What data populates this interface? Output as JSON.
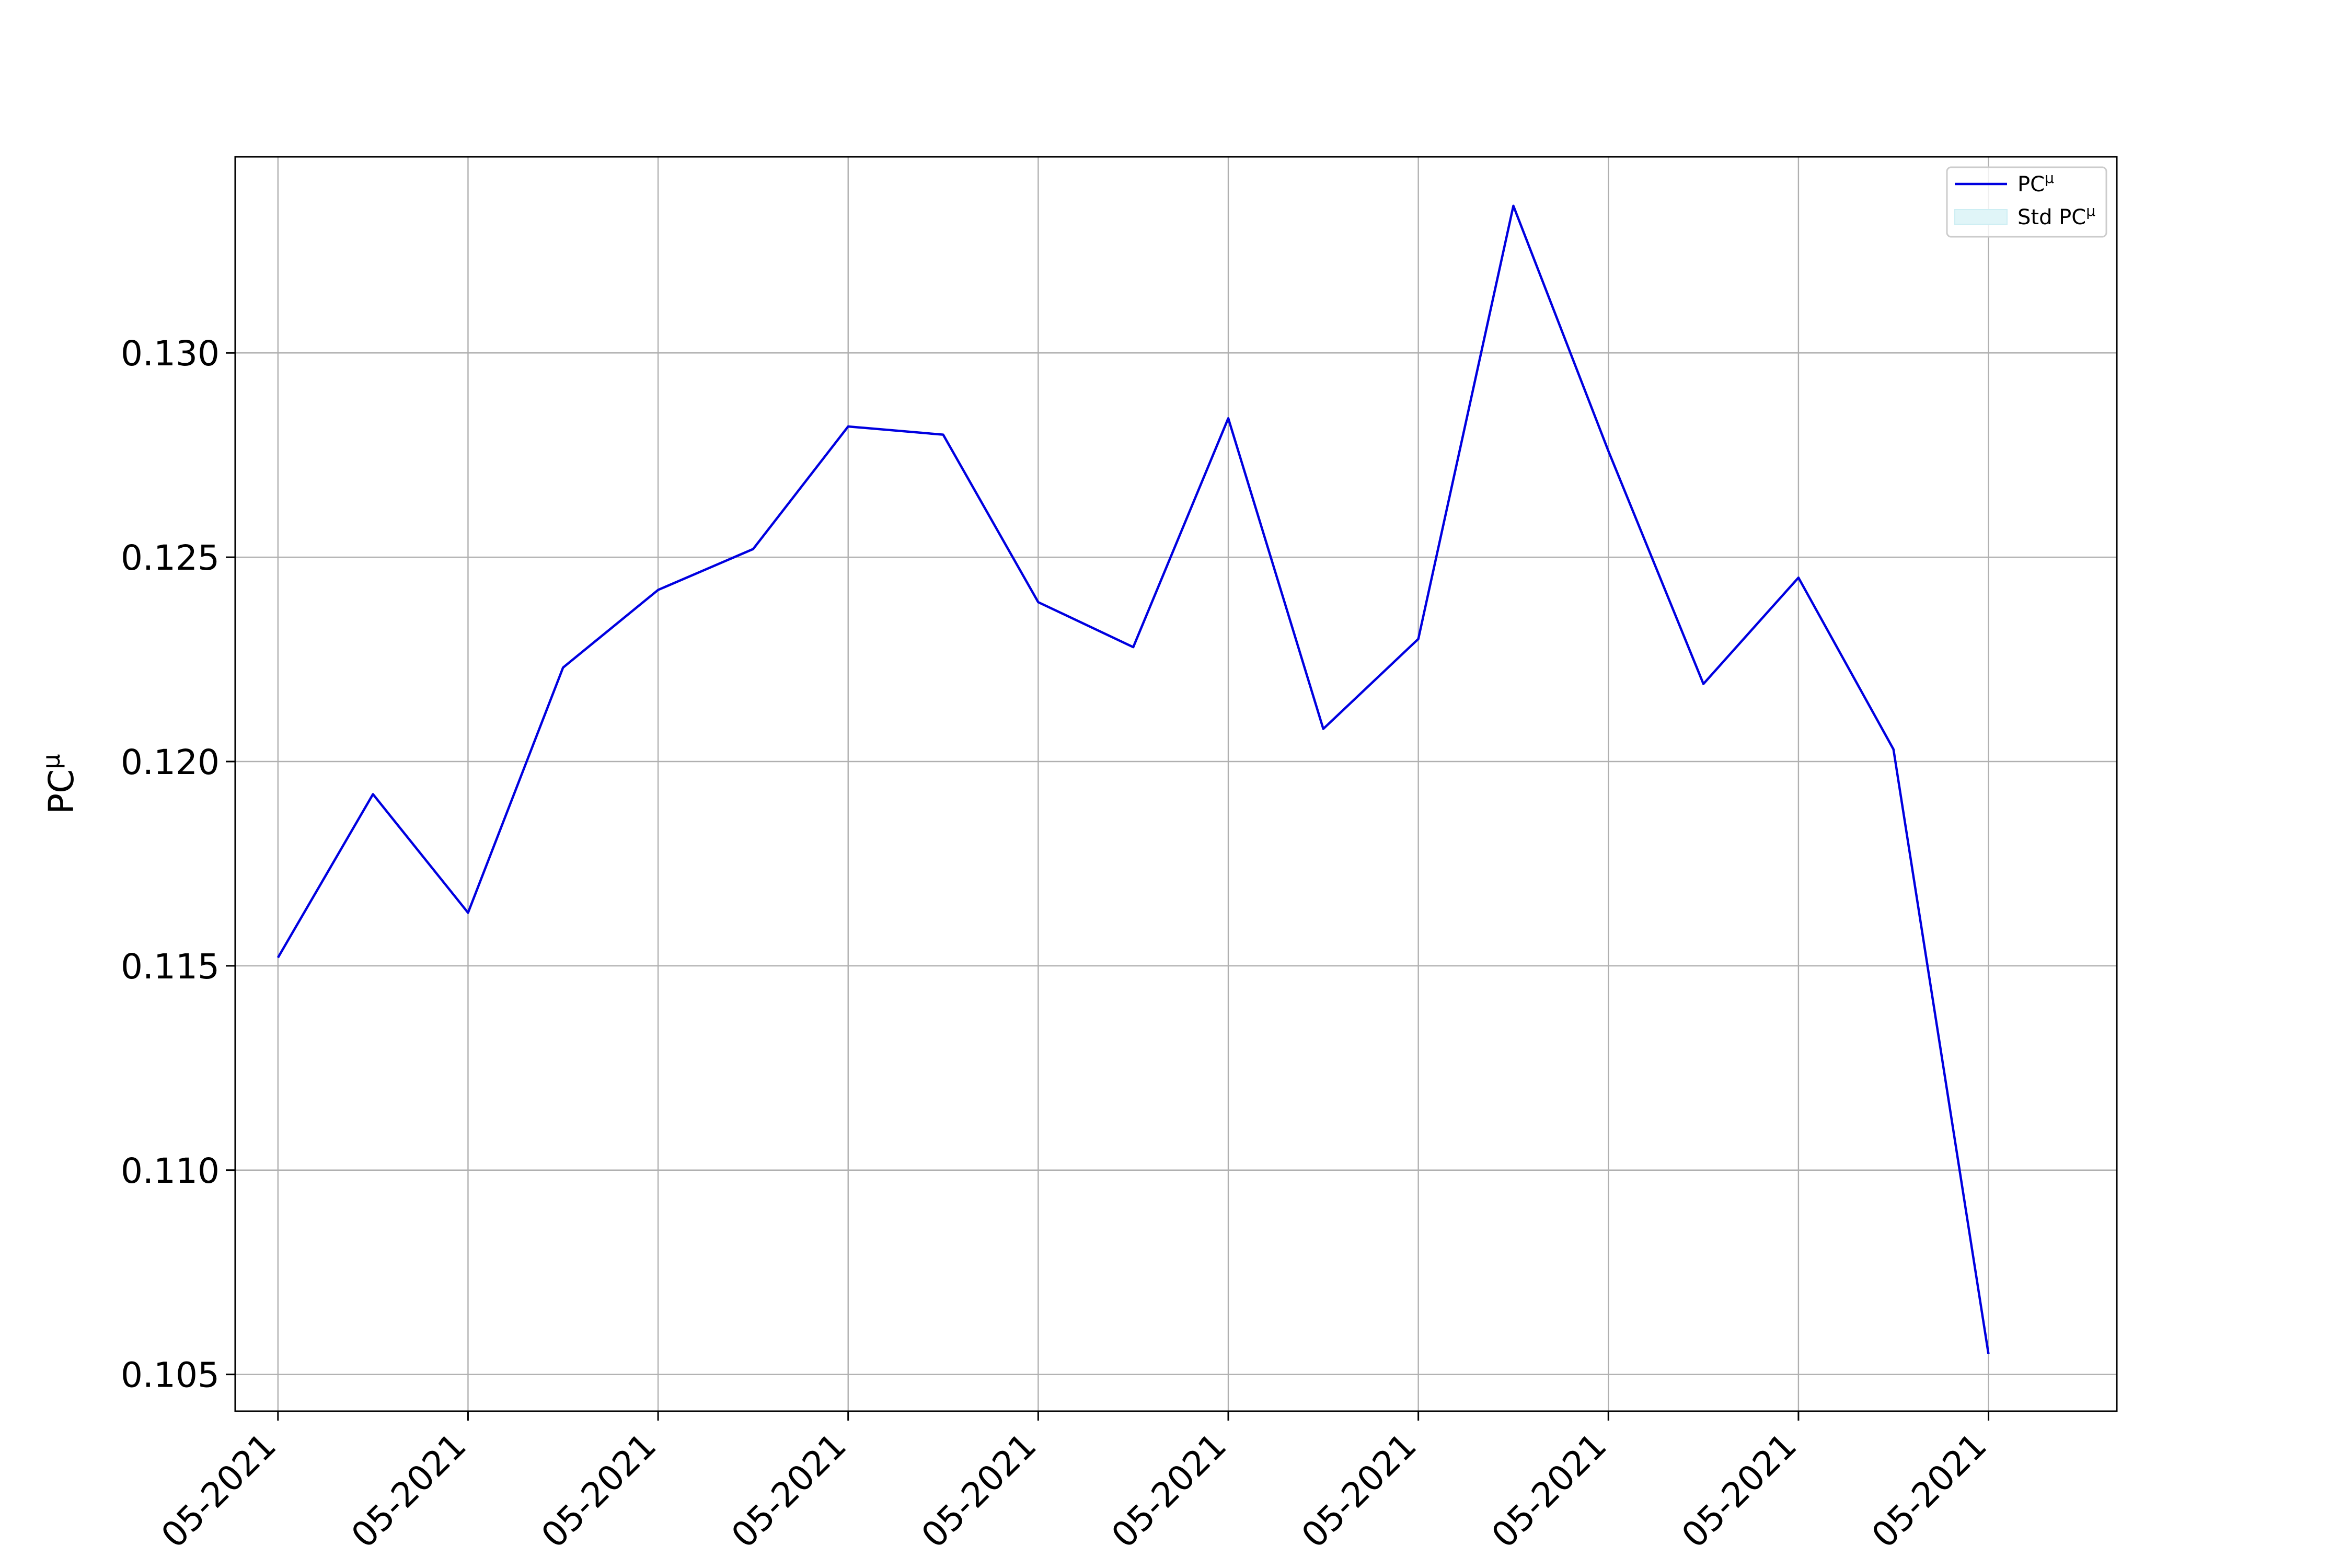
{
  "chart_data": {
    "type": "line",
    "title": "",
    "xlabel": "",
    "ylabel": "PC^μ",
    "ylabel_base": "PC",
    "ylabel_sup": "μ",
    "x_tick_labels": [
      "05-2021",
      "05-2021",
      "05-2021",
      "05-2021",
      "05-2021",
      "05-2021",
      "05-2021",
      "05-2021",
      "05-2021",
      "05-2021"
    ],
    "y_ticks": [
      "0.105",
      "0.110",
      "0.115",
      "0.120",
      "0.125",
      "0.130"
    ],
    "y_tick_values": [
      0.105,
      0.11,
      0.115,
      0.12,
      0.125,
      0.13
    ],
    "ylim": [
      0.1041,
      0.1348
    ],
    "xlim": [
      -0.45,
      19.35
    ],
    "grid": true,
    "legend": {
      "placement": "top-right",
      "entries": [
        {
          "base": "PC",
          "sup": "μ",
          "kind": "line",
          "color": "#0000e0"
        },
        {
          "base": "Std PC",
          "sup": "μ",
          "kind": "patch",
          "color": "#e0f5f8"
        }
      ]
    },
    "series": [
      {
        "name": "PC^μ",
        "color": "#0000e0",
        "x": [
          0,
          1,
          2,
          3,
          4,
          5,
          6,
          7,
          8,
          9,
          10,
          11,
          12,
          13,
          14,
          15,
          16,
          17,
          18
        ],
        "values": [
          0.1152,
          0.1192,
          0.1163,
          0.1223,
          0.1242,
          0.1252,
          0.1282,
          0.128,
          0.1239,
          0.1228,
          0.1284,
          0.1208,
          0.123,
          0.1336,
          0.1276,
          0.1219,
          0.1245,
          0.1203,
          0.1055
        ]
      }
    ]
  }
}
